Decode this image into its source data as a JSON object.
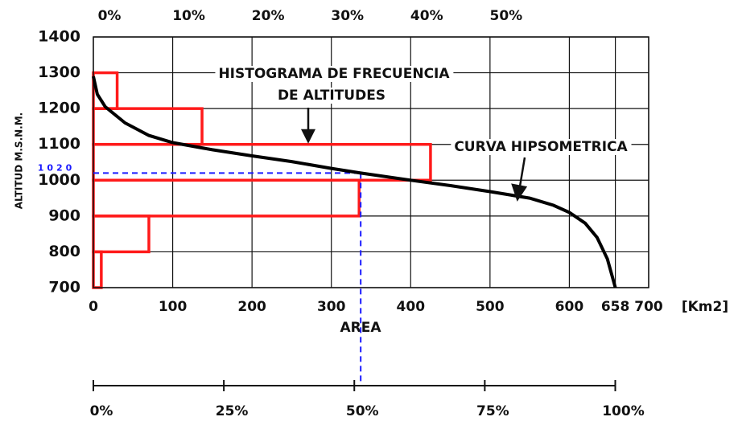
{
  "chart_data": {
    "type": "hypsometric",
    "y_label": "ALTITUD M.S.N.M.",
    "x_label": "AREA",
    "x_unit": "[Km2]",
    "xlim": [
      0,
      700
    ],
    "xticks": [
      0,
      100,
      200,
      300,
      400,
      500,
      600,
      658,
      700
    ],
    "ylim": [
      700,
      1400
    ],
    "yticks": [
      700,
      800,
      900,
      1000,
      1100,
      1200,
      1300,
      1400
    ],
    "x2lim": [
      0,
      70
    ],
    "x2ticks": [
      {
        "value": 0,
        "label": "0%"
      },
      {
        "value": 10,
        "label": "10%"
      },
      {
        "value": 20,
        "label": "20%"
      },
      {
        "value": 30,
        "label": "30%"
      },
      {
        "value": 40,
        "label": "40%"
      },
      {
        "value": 50,
        "label": "50%"
      }
    ],
    "x3lim": [
      0,
      106.4
    ],
    "x3ticks": [
      {
        "value": 0,
        "label": "0%"
      },
      {
        "value": 25,
        "label": "25%"
      },
      {
        "value": 50,
        "label": "50%"
      },
      {
        "value": 75,
        "label": "75%"
      },
      {
        "value": 100,
        "label": "100%"
      }
    ],
    "grid": true,
    "histogram": {
      "name": "HISTOGRAMA DE FRECUENCIA",
      "name2": "DE ALTITUDES",
      "color": "#ff1a1a",
      "bins": [
        700,
        800,
        900,
        1000,
        1100,
        1200,
        1300
      ],
      "values": [
        1,
        7,
        33.5,
        42.5,
        13.7,
        3
      ]
    },
    "curve": {
      "name": "CURVA HIPSOMETRICA",
      "color": "#000000",
      "x": [
        0,
        5,
        15,
        40,
        70,
        100,
        150,
        200,
        250,
        300,
        337,
        400,
        450,
        500,
        550,
        580,
        600,
        620,
        635,
        648,
        658
      ],
      "values": [
        1290,
        1240,
        1205,
        1160,
        1125,
        1105,
        1085,
        1068,
        1052,
        1033,
        1020,
        1000,
        985,
        968,
        950,
        930,
        910,
        880,
        840,
        780,
        700
      ]
    },
    "marker": {
      "altitude": 1020,
      "area": 337,
      "color": "#1a1aff"
    }
  }
}
